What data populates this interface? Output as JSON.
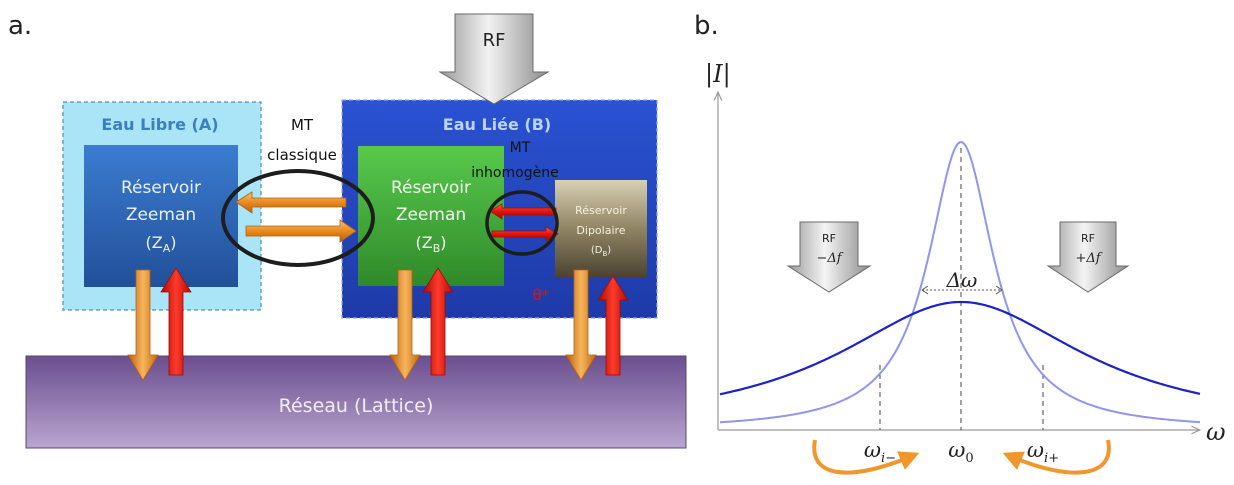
{
  "panel_a": {
    "label": "a.",
    "rf_top": "RF",
    "free_water": {
      "title": "Eau Libre (A)",
      "line1": "Réservoir",
      "line2": "Zeeman",
      "sym": "(Z",
      "sub": "A",
      "close": ")"
    },
    "bound_water": {
      "title": "Eau Liée (B)",
      "line1": "Réservoir",
      "line2": "Zeeman",
      "sym": "(Z",
      "sub": "B",
      "close": ")"
    },
    "dipolar": {
      "line1": "Réservoir",
      "line2": "Dipolaire",
      "sym": "(D",
      "sub": "B",
      "close": ")"
    },
    "mt_classic_1": "MT",
    "mt_classic_2": "classique",
    "mt_inhomo_1": "MT",
    "mt_inhomo_2": "inhomogène",
    "theta": "θ*",
    "lattice": "Réseau (Lattice)",
    "colors": {
      "free_bg": "#a9e4f7",
      "bound_bg": "#2448c8",
      "zeeman_a": "#2f6bbf",
      "zeeman_b": "#3fa838",
      "dipolar": "#6b6048",
      "lattice": "#7d5f9c",
      "orange": "#e88a1e",
      "red": "#e3120b"
    }
  },
  "panel_b": {
    "label": "b.",
    "y_axis": "|I|",
    "x_axis": "ω",
    "rf_left": "RF",
    "rf_left_sub": "−Δf",
    "rf_right": "RF",
    "rf_right_sub": "+Δf",
    "delta": "Δω",
    "ticks": [
      {
        "main": "ω",
        "sub": "i−"
      },
      {
        "main": "ω",
        "sub": "0"
      },
      {
        "main": "ω",
        "sub": "i+"
      }
    ],
    "colors": {
      "narrow": "#8f95f0",
      "broad": "#1c22c8",
      "orange": "#f0962b"
    }
  }
}
